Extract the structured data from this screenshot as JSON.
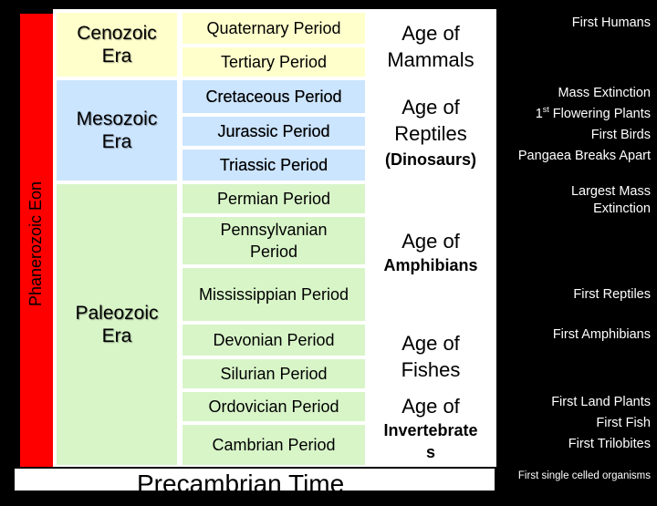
{
  "eon": {
    "label": "Phanerozoic Eon",
    "color": "#ff0000"
  },
  "eras": [
    {
      "name": "Cenozoic Era",
      "line1": "Cenozoic",
      "line2": "Era",
      "color": "#ffffcc"
    },
    {
      "name": "Mesozoic Era",
      "line1": "Mesozoic",
      "line2": "Era",
      "color": "#cce5ff"
    },
    {
      "name": "Paleozoic Era",
      "line1": "Paleozoic",
      "line2": "Era",
      "color": "#d8f5c8"
    }
  ],
  "periods": {
    "quaternary": "Quaternary Period",
    "tertiary": "Tertiary Period",
    "cretaceous": "Cretaceous Period",
    "jurassic": "Jurassic Period",
    "triassic": "Triassic Period",
    "permian": "Permian Period",
    "pennsylvanian_line1": "Pennsylvanian",
    "pennsylvanian_line2": "Period",
    "mississippian": "Mississippian Period",
    "devonian": "Devonian Period",
    "silurian": "Silurian Period",
    "ordovician": "Ordovician Period",
    "cambrian": "Cambrian Period"
  },
  "ages": {
    "mammals_line1": "Age of",
    "mammals_line2": "Mammals",
    "reptiles_line1": "Age of",
    "reptiles_line2": "Reptiles",
    "reptiles_line3": "(Dinosaurs)",
    "amphibians_line1": "Age of",
    "amphibians_line2": "Amphibians",
    "fishes_line1": "Age of",
    "fishes_line2": "Fishes",
    "invertebrates_line1": "Age of",
    "invertebrates_line2": "Invertebrate",
    "invertebrates_line3": "s"
  },
  "events": {
    "first_humans": "First Humans",
    "mass_extinction": "Mass Extinction",
    "first_flowering_ordinal": "1",
    "first_flowering_sup": "st",
    "first_flowering_rest": " Flowering Plants",
    "first_birds": "First Birds",
    "pangaea": "Pangaea Breaks Apart",
    "largest_mass_line1": "Largest Mass",
    "largest_mass_line2": "Extinction",
    "first_reptiles": "First Reptiles",
    "first_amphibians": "First Amphibians",
    "first_land_plants": "First Land Plants",
    "first_fish": "First Fish",
    "first_trilobites": "First Trilobites",
    "first_single_celled": "First single celled organisms"
  },
  "precambrian": {
    "label": "Precambrian Time"
  },
  "colors": {
    "cenozoic": "#ffffcc",
    "mesozoic": "#cce5ff",
    "paleozoic": "#d8f5c8",
    "eon": "#ff0000",
    "background": "#000000",
    "events_text": "#ffffff"
  }
}
